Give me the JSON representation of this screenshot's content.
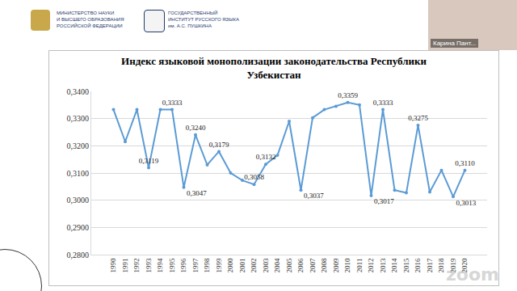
{
  "header": {
    "ministry": [
      "МИНИСТЕРСТВО НАУКИ",
      "И ВЫСШЕГО ОБРАЗОВАНИЯ",
      "РОССИЙСКОЙ ФЕДЕРАЦИИ"
    ],
    "institute": [
      "ГОСУДАРСТВЕННЫЙ",
      "ИНСТИТУТ РУССКОГО ЯЗЫКА",
      "им. А.С. ПУШКИНА"
    ],
    "participant": "Карина Пант...",
    "watermark": "zoom"
  },
  "chart_data": {
    "type": "line",
    "title": "Индекс языковой монополизации законодательства Республики Узбекистан",
    "categories": [
      "1990",
      "1991",
      "1992",
      "1993",
      "1994",
      "1995",
      "1996",
      "1997",
      "1998",
      "1999",
      "2000",
      "2001",
      "2002",
      "2003",
      "2004",
      "2005",
      "2006",
      "2007",
      "2008",
      "2009",
      "2010",
      "2011",
      "2012",
      "2013",
      "2014",
      "2015",
      "2016",
      "2017",
      "2018",
      "2019",
      "2020"
    ],
    "values": [
      0.3333,
      0.3215,
      0.3333,
      0.3119,
      0.3333,
      0.3333,
      0.3047,
      0.324,
      0.313,
      0.3179,
      0.31,
      0.3073,
      0.3058,
      0.3132,
      0.3165,
      0.329,
      0.3037,
      0.3303,
      0.3333,
      0.3345,
      0.3359,
      0.335,
      0.3017,
      0.3333,
      0.3037,
      0.3027,
      0.3275,
      0.303,
      0.311,
      0.3013,
      0.311
    ],
    "value_labels": [
      null,
      null,
      null,
      "0,3119",
      null,
      "0,3333",
      "0,3047",
      "0,3240",
      null,
      "0,3179",
      null,
      null,
      "0,3058",
      "0,3132",
      null,
      null,
      "0,3037",
      null,
      null,
      null,
      "0,3359",
      null,
      "0,3017",
      "0,3333",
      null,
      null,
      "0,3275",
      null,
      null,
      "0,3013",
      "0,3110"
    ],
    "data_labels": true,
    "color": "#5b9bd5",
    "marker": "circle",
    "ylim": [
      0.28,
      0.34
    ],
    "yticks": [
      {
        "value": 0.28,
        "label": "0,2800"
      },
      {
        "value": 0.29,
        "label": "0,2900"
      },
      {
        "value": 0.3,
        "label": "0,3000"
      },
      {
        "value": 0.31,
        "label": "0,3100"
      },
      {
        "value": 0.32,
        "label": "0,3200"
      },
      {
        "value": 0.33,
        "label": "0,3300"
      },
      {
        "value": 0.34,
        "label": "0,3400"
      }
    ],
    "grid": true
  }
}
